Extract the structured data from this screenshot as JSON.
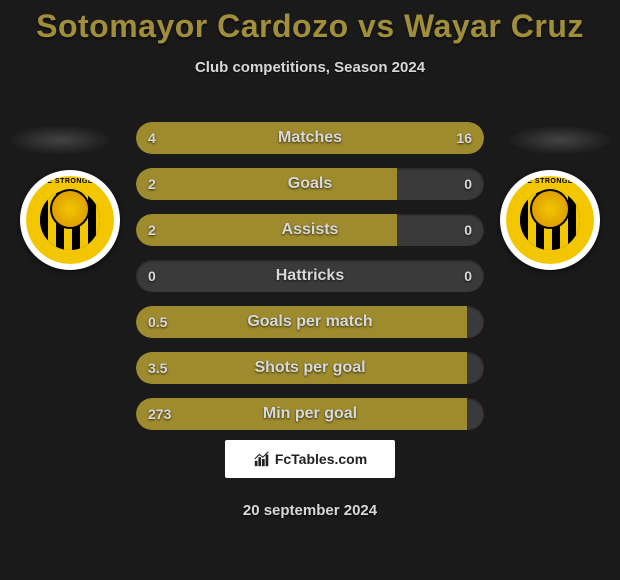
{
  "title": "Sotomayor Cardozo vs Wayar Cruz",
  "subtitle": "Club competitions, Season 2024",
  "date": "20 september 2024",
  "footer_label": "FcTables.com",
  "colors": {
    "background": "#1a1a1a",
    "title": "#a08e3a",
    "text": "#d8d8d8",
    "bar_fill": "#9e8b2e",
    "bar_bg": "#3a3a3a",
    "crest_primary": "#f2c600",
    "crest_secondary": "#000000"
  },
  "crest_label": "HE STRONGES",
  "bars": [
    {
      "label": "Matches",
      "left_val": "4",
      "right_val": "16",
      "left_pct": 20,
      "right_pct": 80
    },
    {
      "label": "Goals",
      "left_val": "2",
      "right_val": "0",
      "left_pct": 75,
      "right_pct": 0
    },
    {
      "label": "Assists",
      "left_val": "2",
      "right_val": "0",
      "left_pct": 75,
      "right_pct": 0
    },
    {
      "label": "Hattricks",
      "left_val": "0",
      "right_val": "0",
      "left_pct": 0,
      "right_pct": 0
    },
    {
      "label": "Goals per match",
      "left_val": "0.5",
      "right_val": "",
      "left_pct": 95,
      "right_pct": 0
    },
    {
      "label": "Shots per goal",
      "left_val": "3.5",
      "right_val": "",
      "left_pct": 95,
      "right_pct": 0
    },
    {
      "label": "Min per goal",
      "left_val": "273",
      "right_val": "",
      "left_pct": 95,
      "right_pct": 0
    }
  ]
}
